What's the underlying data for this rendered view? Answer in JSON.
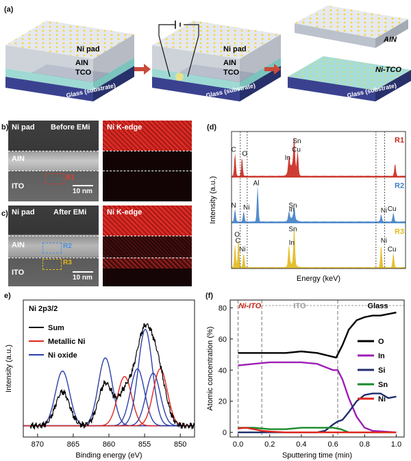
{
  "panel_labels": {
    "a": "(a)",
    "b": "b)",
    "c": "c)",
    "d": "(d)",
    "e": "e)",
    "f": "(f)"
  },
  "schematic": {
    "step1": {
      "ni_pad": "Ni pad",
      "ain": "AIN",
      "tco": "TCO",
      "glass": "Glass (substrate)"
    },
    "step2": {
      "ni_pad": "Ni pad",
      "ain": "AIN",
      "tco": "TCO",
      "glass": "Glass (substrate)"
    },
    "step3": {
      "ain": "AIN",
      "ni_tco": "Ni-TCO",
      "glass": "Glass (substrate)"
    }
  },
  "tem": {
    "b": {
      "ni_pad": "Ni pad",
      "title": "Before EMi",
      "ain": "AIN",
      "ito": "ITO",
      "region": "R1",
      "scale": "10 nm",
      "edge": "Ni K-edge"
    },
    "c": {
      "ni_pad": "Ni pad",
      "title": "After EMi",
      "ain": "AIN",
      "ito": "ITO",
      "region2": "R2",
      "region3": "R3",
      "scale": "10 nm",
      "edge": "Ni K-edge"
    }
  },
  "chart_data": [
    {
      "panel": "d",
      "type": "area",
      "xlabel": "Energy (keV)",
      "ylabel": "Intensity (a.u.)",
      "series": [
        {
          "name": "R1",
          "color": "#c8281e",
          "peaks": [
            {
              "label": "C"
            },
            {
              "label": "O"
            },
            {
              "label": "In"
            },
            {
              "label": "Sn"
            },
            {
              "label": "Cu"
            }
          ]
        },
        {
          "name": "R2",
          "color": "#3f7fc8",
          "peaks": [
            {
              "label": "N"
            },
            {
              "label": "Ni"
            },
            {
              "label": "Al"
            },
            {
              "label": "In"
            },
            {
              "label": "Sn"
            },
            {
              "label": "Ni"
            },
            {
              "label": "Cu"
            }
          ]
        },
        {
          "name": "R3",
          "color": "#e2b91c",
          "peaks": [
            {
              "label": "O"
            },
            {
              "label": "C"
            },
            {
              "label": "Ni"
            },
            {
              "label": "In"
            },
            {
              "label": "Sn"
            },
            {
              "label": "Ni"
            },
            {
              "label": "Cu"
            }
          ]
        }
      ]
    },
    {
      "panel": "e",
      "type": "line",
      "title": "Ni 2p3/2",
      "xlabel": "Binding energy (eV)",
      "ylabel": "Intensity (a.u.)",
      "x_ticks": [
        870,
        865,
        860,
        855,
        850
      ],
      "xlim": [
        872,
        848
      ],
      "legend": [
        {
          "name": "Sum",
          "color": "#000000"
        },
        {
          "name": "Metallic Ni",
          "color": "#e0261c"
        },
        {
          "name": "Ni oxide",
          "color": "#2b3fa8"
        }
      ],
      "components": [
        {
          "type": "oxide",
          "center": 866.5,
          "amp": 0.5
        },
        {
          "type": "oxide",
          "center": 860.5,
          "amp": 0.62
        },
        {
          "type": "metal",
          "center": 857.8,
          "amp": 0.45
        },
        {
          "type": "oxide",
          "center": 856.0,
          "amp": 0.52
        },
        {
          "type": "oxide",
          "center": 854.9,
          "amp": 0.88
        },
        {
          "type": "oxide",
          "center": 853.8,
          "amp": 0.48
        },
        {
          "type": "metal",
          "center": 852.8,
          "amp": 0.52
        }
      ]
    },
    {
      "panel": "f",
      "type": "line",
      "xlabel": "Sputtering time (min)",
      "ylabel": "Atomic concentration (%)",
      "xlim": [
        -0.05,
        1.05
      ],
      "ylim": [
        -3,
        85
      ],
      "x_ticks": [
        0.0,
        0.2,
        0.4,
        0.6,
        0.8,
        1.0
      ],
      "y_ticks": [
        0,
        20,
        40,
        60,
        80
      ],
      "regions": [
        {
          "name": "Ni-ITO",
          "color": "#c8281e"
        },
        {
          "name": "ITO",
          "color": "#9a9a9a"
        },
        {
          "name": "Glass",
          "color": "#000000"
        }
      ],
      "boundaries": [
        0.0,
        0.15,
        0.63
      ],
      "series": [
        {
          "name": "O",
          "color": "#000000",
          "x": [
            0,
            0.1,
            0.2,
            0.3,
            0.4,
            0.5,
            0.58,
            0.62,
            0.66,
            0.7,
            0.75,
            0.8,
            0.85,
            0.9,
            1.0
          ],
          "y": [
            51,
            51,
            51,
            51,
            52,
            51,
            49,
            48,
            56,
            66,
            72,
            74,
            75,
            75,
            77
          ]
        },
        {
          "name": "In",
          "color": "#9b1fb5",
          "x": [
            0,
            0.1,
            0.2,
            0.3,
            0.4,
            0.5,
            0.55,
            0.6,
            0.63,
            0.66,
            0.7,
            0.75,
            0.8,
            0.85,
            1.0
          ],
          "y": [
            43,
            44,
            45,
            45,
            45,
            44,
            42,
            40,
            40,
            34,
            22,
            10,
            3,
            1,
            0
          ]
        },
        {
          "name": "Si",
          "color": "#1f2d6e",
          "x": [
            0,
            0.3,
            0.5,
            0.55,
            0.6,
            0.63,
            0.66,
            0.7,
            0.75,
            0.8,
            0.85,
            0.9,
            0.95,
            1.0
          ],
          "y": [
            0,
            0,
            0,
            1,
            5,
            7,
            8,
            13,
            20,
            24,
            25,
            25,
            22,
            23
          ]
        },
        {
          "name": "Sn",
          "color": "#1a8a2a",
          "x": [
            0,
            0.1,
            0.2,
            0.3,
            0.4,
            0.5,
            0.6,
            0.65,
            0.7,
            1.0
          ],
          "y": [
            3,
            3,
            2,
            2,
            3,
            3,
            3,
            2,
            0,
            0
          ]
        },
        {
          "name": "Ni",
          "color": "#e0261c",
          "x": [
            0,
            0.05,
            0.1,
            0.15,
            0.2,
            0.3,
            1.0
          ],
          "y": [
            2.5,
            3,
            2,
            1,
            0.5,
            0,
            0
          ]
        }
      ]
    }
  ]
}
